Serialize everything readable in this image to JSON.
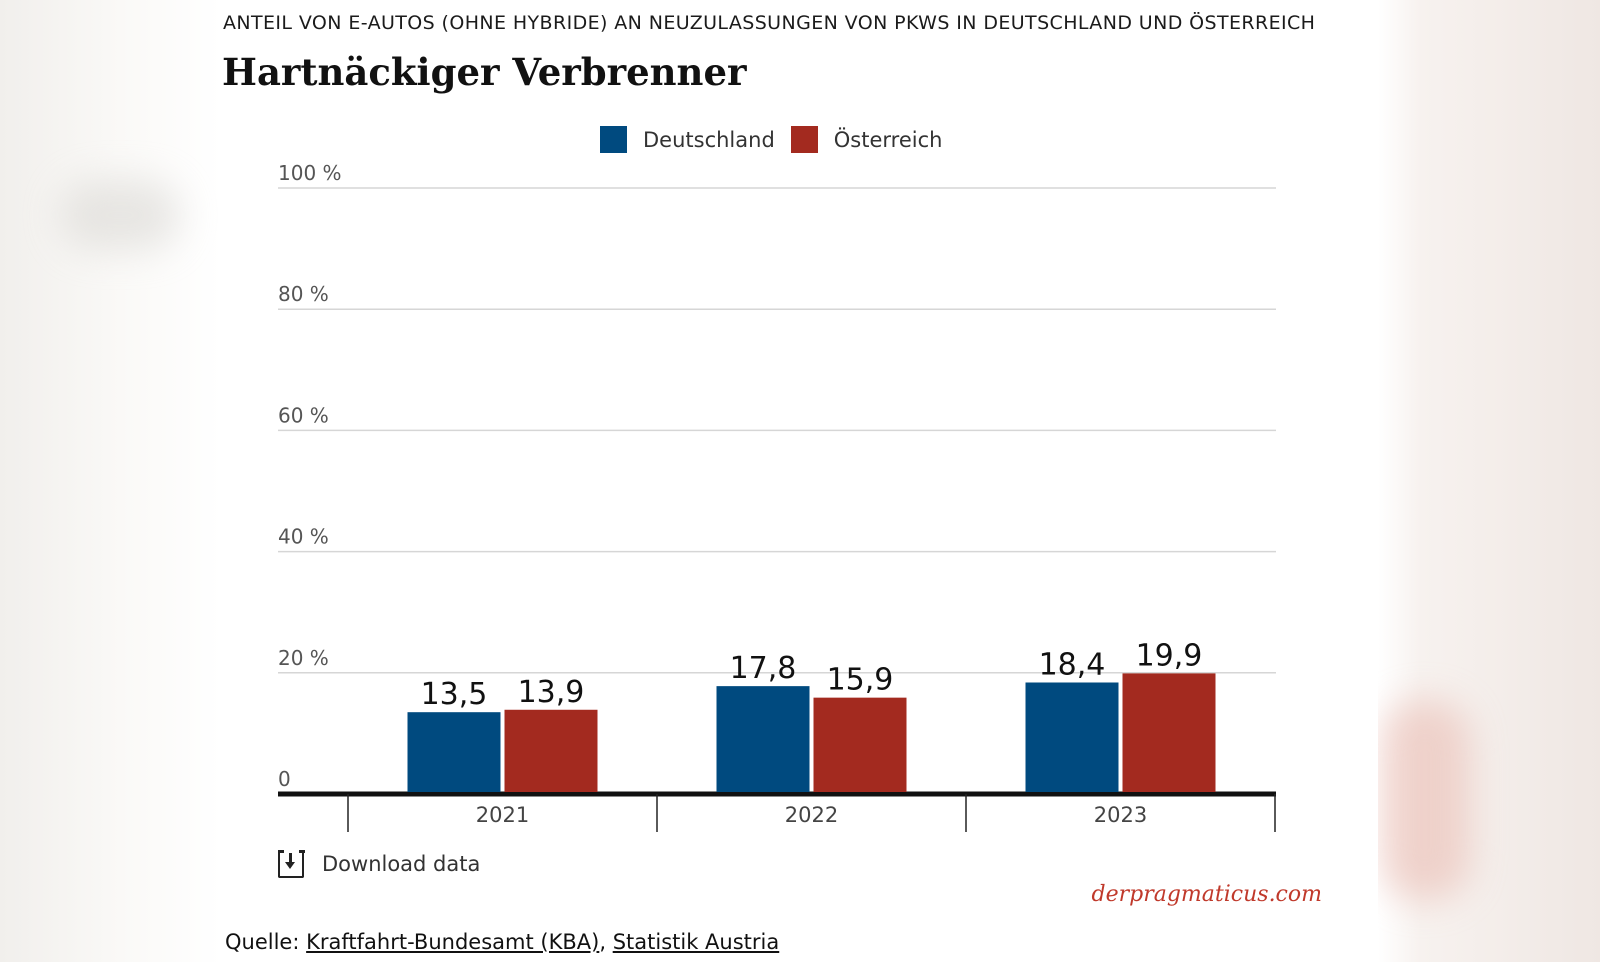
{
  "header": {
    "kicker": "ANTEIL VON E-AUTOS (OHNE HYBRIDE) AN NEUZULASSUNGEN VON PKWS IN DEUTSCHLAND UND ÖSTERREICH",
    "title": "Hartnäckiger Verbrenner"
  },
  "legend": {
    "items": [
      {
        "label": "Deutschland",
        "color": "#004a7f"
      },
      {
        "label": "Österreich",
        "color": "#a32a1f"
      }
    ]
  },
  "chart_data": {
    "type": "bar",
    "title": "Hartnäckiger Verbrenner",
    "categories": [
      "2021",
      "2022",
      "2023"
    ],
    "series": [
      {
        "name": "Deutschland",
        "values": [
          13.5,
          17.8,
          18.4
        ],
        "labels": [
          "13,5",
          "17,8",
          "18,4"
        ],
        "color": "#004a7f"
      },
      {
        "name": "Österreich",
        "values": [
          13.9,
          15.9,
          19.9
        ],
        "labels": [
          "13,9",
          "15,9",
          "19,9"
        ],
        "color": "#a32a1f"
      }
    ],
    "ylim": [
      0,
      100
    ],
    "yticks": [
      0,
      20,
      40,
      60,
      80,
      100
    ],
    "ytick_labels": [
      "0",
      "20 %",
      "40 %",
      "60 %",
      "80 %",
      "100 %"
    ],
    "grid": true,
    "legend_position": "top-center"
  },
  "footer": {
    "download_label": "Download data",
    "brand": "derpragmaticus.com",
    "source_prefix": "Quelle:",
    "source_links": [
      "Kraftfahrt-Bundesamt (KBA)",
      "Statistik Austria"
    ],
    "source_separator": ","
  }
}
